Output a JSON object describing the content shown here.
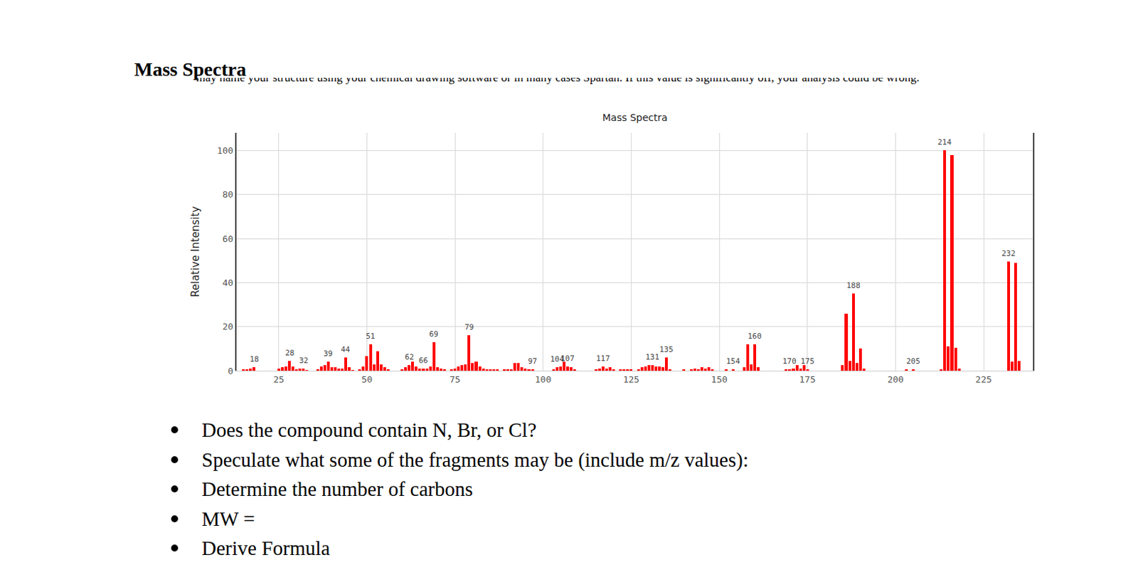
{
  "heading": "Mass Spectra",
  "note": "may name your structure using your chemical drawing software or in many cases Spartan. If this value is significantly off, your analysis could be wrong.",
  "chart_data": {
    "type": "bar",
    "title": "Mass Spectra",
    "y_label": "Relative Intensity",
    "color": "#ff0000",
    "grid": true,
    "x": [
      15,
      16,
      17,
      18,
      25,
      26,
      27,
      28,
      29,
      30,
      31,
      32,
      33,
      36,
      37,
      38,
      39,
      40,
      41,
      42,
      43,
      44,
      45,
      46,
      48,
      49,
      50,
      51,
      52,
      53,
      54,
      55,
      56,
      60,
      61,
      62,
      63,
      64,
      65,
      66,
      67,
      68,
      69,
      70,
      71,
      72,
      74,
      75,
      76,
      77,
      78,
      79,
      80,
      81,
      82,
      83,
      84,
      85,
      86,
      87,
      89,
      90,
      91,
      92,
      93,
      94,
      95,
      96,
      97,
      103,
      104,
      105,
      106,
      107,
      108,
      109,
      115,
      116,
      117,
      118,
      119,
      120,
      122,
      123,
      124,
      125,
      127,
      128,
      129,
      130,
      131,
      132,
      133,
      134,
      135,
      136,
      140,
      142,
      143,
      144,
      145,
      146,
      147,
      148,
      152,
      154,
      157,
      158,
      159,
      160,
      161,
      169,
      170,
      171,
      172,
      173,
      174,
      175,
      185,
      186,
      187,
      188,
      189,
      190,
      191,
      203,
      205,
      213,
      214,
      215,
      216,
      217,
      218,
      232,
      233,
      234,
      235
    ],
    "values": [
      0.5,
      0.5,
      1,
      1.5,
      1,
      1.5,
      2,
      4.5,
      2,
      0.5,
      1,
      1,
      0.3,
      0.5,
      2,
      2.5,
      4,
      1.5,
      1.5,
      1,
      1,
      6,
      1.5,
      0.3,
      0.5,
      2,
      6.5,
      12,
      3,
      9,
      3,
      1.5,
      0.5,
      0.5,
      1.5,
      2.5,
      4,
      2,
      1,
      1,
      1,
      2,
      13,
      1.5,
      1,
      0.5,
      0.5,
      1,
      2,
      2.5,
      3,
      16,
      3.5,
      4,
      2,
      1,
      0.5,
      0.5,
      0.5,
      0.5,
      0.5,
      0.5,
      0.5,
      3.5,
      3.5,
      1.5,
      1,
      0.5,
      0.5,
      0.5,
      1.5,
      2,
      4,
      2,
      1.5,
      0.5,
      0.5,
      1,
      2,
      1,
      1.5,
      0.5,
      0.5,
      0.5,
      0.5,
      0.5,
      0.5,
      1.5,
      2,
      2.5,
      2.5,
      2,
      2,
      1.5,
      6,
      0.5,
      0.5,
      0.5,
      1,
      0.5,
      1.5,
      1,
      1.5,
      0.5,
      0.5,
      0.5,
      1.5,
      12,
      3,
      12,
      1.5,
      0.5,
      0.5,
      1,
      2.5,
      1,
      2.5,
      0.5,
      2.5,
      26,
      4.5,
      35,
      3.5,
      10,
      1,
      0.5,
      0.5,
      0.5,
      100,
      11,
      98,
      10.5,
      1,
      49.5,
      4,
      49,
      4.5
    ],
    "xlim": [
      13,
      239
    ],
    "xticks": [
      25,
      50,
      75,
      100,
      125,
      150,
      175,
      200,
      225
    ],
    "ylim": [
      0,
      108
    ],
    "yticks": [
      0,
      20,
      40,
      60,
      80,
      100
    ],
    "annotations": [
      {
        "x": 18,
        "text": "18"
      },
      {
        "x": 28,
        "text": "28"
      },
      {
        "x": 32,
        "text": "32"
      },
      {
        "x": 39,
        "text": "39"
      },
      {
        "x": 44,
        "text": "44"
      },
      {
        "x": 51,
        "text": "51"
      },
      {
        "x": 62,
        "text": "62"
      },
      {
        "x": 66,
        "text": "66"
      },
      {
        "x": 69,
        "text": "69"
      },
      {
        "x": 79,
        "text": "79"
      },
      {
        "x": 97,
        "text": "97"
      },
      {
        "x": 104,
        "text": "104"
      },
      {
        "x": 107,
        "text": "107"
      },
      {
        "x": 117,
        "text": "117"
      },
      {
        "x": 131,
        "text": "131"
      },
      {
        "x": 135,
        "text": "135"
      },
      {
        "x": 154,
        "text": "154"
      },
      {
        "x": 160,
        "text": "160"
      },
      {
        "x": 170,
        "text": "170"
      },
      {
        "x": 175,
        "text": "175"
      },
      {
        "x": 188,
        "text": "188"
      },
      {
        "x": 205,
        "text": "205"
      },
      {
        "x": 214,
        "text": "214"
      },
      {
        "x": 232,
        "text": "232"
      }
    ]
  },
  "bullets": [
    "Does the compound contain N, Br, or Cl?",
    "Speculate what some of the fragments may be (include m/z values):",
    "Determine the number of carbons",
    "MW =",
    "Derive Formula"
  ]
}
